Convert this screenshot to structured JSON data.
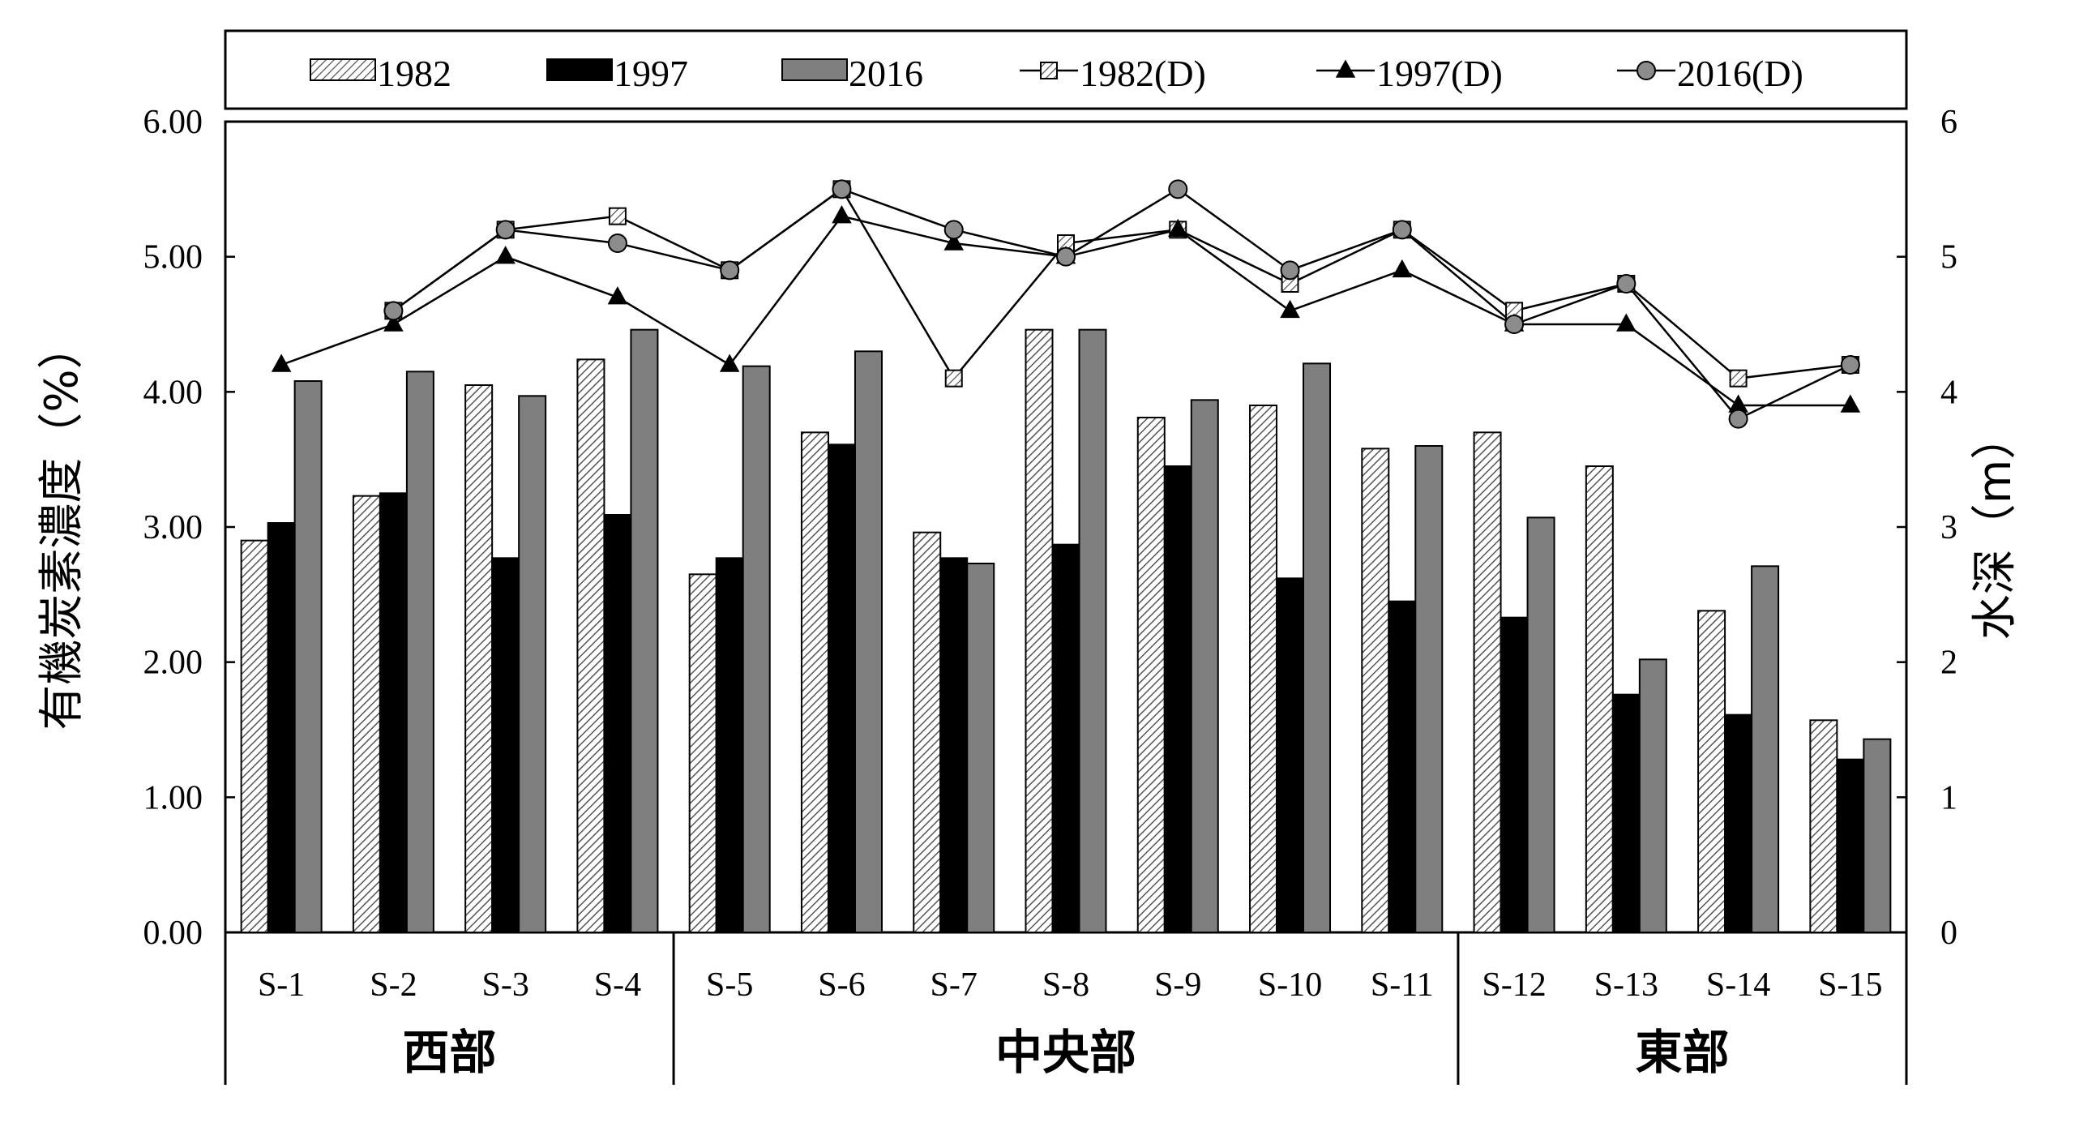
{
  "chart_data": {
    "type": "bar",
    "categories": [
      "S-1",
      "S-2",
      "S-3",
      "S-4",
      "S-5",
      "S-6",
      "S-7",
      "S-8",
      "S-9",
      "S-10",
      "S-11",
      "S-12",
      "S-13",
      "S-14",
      "S-15"
    ],
    "groups": [
      {
        "label": "西部",
        "count": 4
      },
      {
        "label": "中央部",
        "count": 7
      },
      {
        "label": "東部",
        "count": 4
      }
    ],
    "ylabel": "有機炭素濃度（%）",
    "y2label": "水深（m）",
    "ylim": [
      0,
      6
    ],
    "y2lim": [
      0,
      6
    ],
    "yticks": [
      "0.00",
      "1.00",
      "2.00",
      "3.00",
      "4.00",
      "5.00",
      "6.00"
    ],
    "y2ticks": [
      "0",
      "1",
      "2",
      "3",
      "4",
      "5",
      "6"
    ],
    "bar_series": [
      {
        "name": "1982",
        "style": "hatched",
        "values": [
          2.9,
          3.23,
          4.05,
          4.24,
          2.65,
          3.7,
          2.96,
          4.46,
          3.81,
          3.9,
          3.58,
          3.7,
          3.45,
          2.38,
          1.57
        ]
      },
      {
        "name": "1997",
        "style": "black",
        "values": [
          3.03,
          3.25,
          2.77,
          3.09,
          2.77,
          3.61,
          2.77,
          2.87,
          3.45,
          2.62,
          2.45,
          2.33,
          1.76,
          1.61,
          1.28
        ]
      },
      {
        "name": "2016",
        "style": "gray",
        "values": [
          4.08,
          4.15,
          3.97,
          4.46,
          4.19,
          4.3,
          2.73,
          4.46,
          3.94,
          4.21,
          3.6,
          3.07,
          2.02,
          2.71,
          1.43
        ]
      }
    ],
    "line_series": [
      {
        "name": "1982(D)",
        "marker": "square",
        "values": [
          null,
          4.6,
          5.2,
          5.3,
          4.9,
          5.5,
          4.1,
          5.1,
          5.2,
          4.8,
          5.2,
          4.6,
          4.8,
          4.1,
          4.2
        ]
      },
      {
        "name": "1997(D)",
        "marker": "triangle",
        "values": [
          4.2,
          4.5,
          5.0,
          4.7,
          4.2,
          5.3,
          5.1,
          5.0,
          5.2,
          4.6,
          4.9,
          4.5,
          4.5,
          3.9,
          3.9
        ]
      },
      {
        "name": "2016(D)",
        "marker": "circle",
        "values": [
          null,
          4.6,
          5.2,
          5.1,
          4.9,
          5.5,
          5.2,
          5.0,
          5.5,
          4.9,
          5.2,
          4.5,
          4.8,
          3.8,
          4.2
        ]
      }
    ],
    "legend": "top",
    "grid": false,
    "colors": {
      "bar_1997": "#000000",
      "bar_2016": "#7f7f7f",
      "hatch": "#555555",
      "marker_circle": "#8c8c8c",
      "axis": "#000000"
    }
  }
}
